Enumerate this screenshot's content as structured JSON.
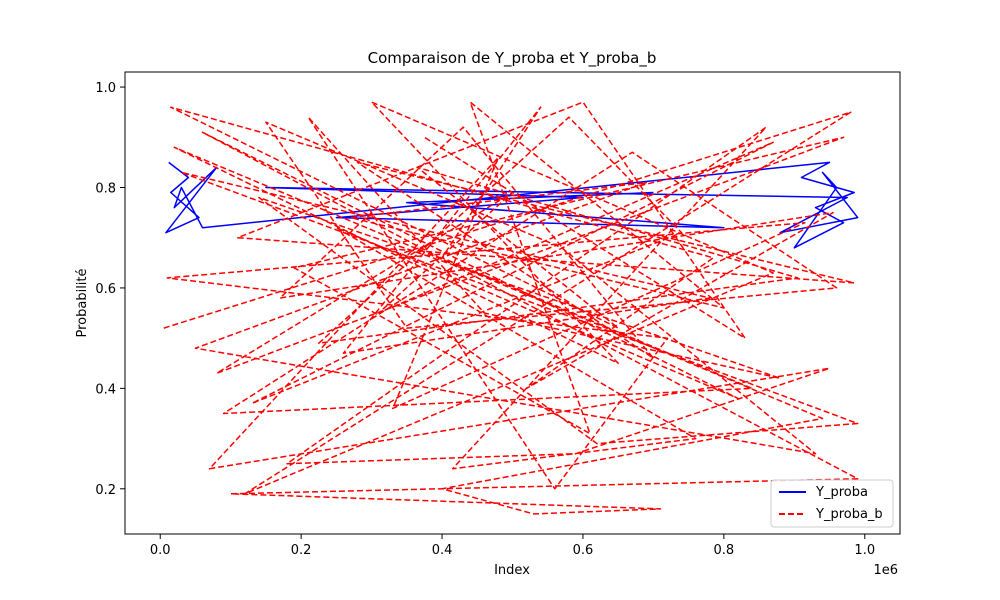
{
  "chart_data": {
    "type": "line",
    "title": "Comparaison de Y_proba et Y_proba_b",
    "xlabel": "Index",
    "ylabel": "Probabilité",
    "x_offset_label": "1e6",
    "xlim": [
      -50000,
      1050000
    ],
    "ylim": [
      0.11,
      1.03
    ],
    "x_ticks": [
      0.0,
      200000,
      400000,
      600000,
      800000,
      1000000
    ],
    "x_tick_labels": [
      "0.0",
      "0.2",
      "0.4",
      "0.6",
      "0.8",
      "1.0"
    ],
    "y_ticks": [
      0.2,
      0.4,
      0.6,
      0.8,
      1.0
    ],
    "y_tick_labels": [
      "0.2",
      "0.4",
      "0.6",
      "0.8",
      "1.0"
    ],
    "grid": false,
    "legend_position": "lower-right",
    "series": [
      {
        "name": "Y_proba",
        "color": "#0000ff",
        "dash": "solid",
        "x": [
          12000,
          40000,
          15000,
          55000,
          8000,
          80000,
          20000,
          30000,
          60000,
          950000,
          910000,
          985000,
          930000,
          970000,
          900000,
          960000,
          940000,
          990000,
          880000,
          975000,
          150000,
          600000,
          250000,
          800000,
          350000,
          700000
        ],
        "values": [
          0.85,
          0.82,
          0.79,
          0.74,
          0.71,
          0.84,
          0.76,
          0.8,
          0.72,
          0.85,
          0.82,
          0.79,
          0.76,
          0.73,
          0.68,
          0.8,
          0.83,
          0.74,
          0.71,
          0.78,
          0.8,
          0.78,
          0.74,
          0.72,
          0.77,
          0.79
        ]
      },
      {
        "name": "Y_proba_b",
        "color": "#ff0000",
        "dash": "dashed",
        "x": [
          5000,
          980000,
          120000,
          870000,
          300000,
          650000,
          20000,
          940000,
          400000,
          530000,
          710000,
          100000,
          990000,
          60000,
          820000,
          250000,
          760000,
          415000,
          860000,
          180000,
          590000,
          950000,
          70000,
          480000,
          330000,
          915000,
          10000,
          720000,
          560000,
          210000,
          460000,
          880000,
          140000,
          620000,
          990000,
          30000,
          780000,
          260000,
          540000,
          400000,
          840000,
          90000,
          670000,
          960000,
          350000,
          150000,
          570000,
          930000,
          50000,
          690000,
          270000,
          800000,
          440000,
          610000,
          190000,
          970000,
          80000,
          500000,
          310000,
          870000,
          130000,
          740000,
          580000,
          225000,
          905000,
          365000,
          650000,
          15000,
          785000,
          520000,
          955000,
          170000,
          430000,
          700000,
          280000,
          985000,
          110000,
          600000,
          830000,
          375000
        ],
        "values": [
          0.52,
          0.95,
          0.19,
          0.63,
          0.97,
          0.45,
          0.88,
          0.34,
          0.2,
          0.15,
          0.16,
          0.19,
          0.22,
          0.91,
          0.38,
          0.72,
          0.3,
          0.24,
          0.92,
          0.25,
          0.27,
          0.44,
          0.24,
          0.86,
          0.36,
          0.73,
          0.62,
          0.5,
          0.2,
          0.94,
          0.55,
          0.42,
          0.78,
          0.29,
          0.33,
          0.83,
          0.58,
          0.47,
          0.96,
          0.66,
          0.4,
          0.35,
          0.87,
          0.6,
          0.52,
          0.93,
          0.68,
          0.27,
          0.48,
          0.81,
          0.74,
          0.56,
          0.97,
          0.31,
          0.64,
          0.9,
          0.43,
          0.79,
          0.55,
          0.89,
          0.37,
          0.71,
          0.94,
          0.49,
          0.62,
          0.84,
          0.52,
          0.96,
          0.66,
          0.4,
          0.75,
          0.58,
          0.92,
          0.46,
          0.85,
          0.61,
          0.7,
          0.97,
          0.5,
          0.9
        ]
      }
    ]
  }
}
